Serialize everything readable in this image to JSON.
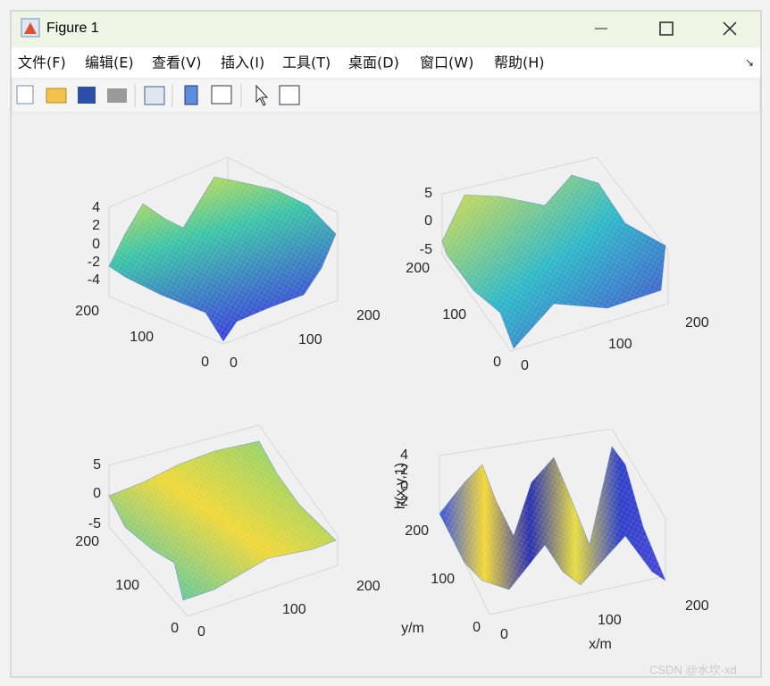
{
  "window": {
    "title": "Figure 1"
  },
  "menu": [
    "文件(F)",
    "编辑(E)",
    "查看(V)",
    "插入(I)",
    "工具(T)",
    "桌面(D)",
    "窗口(W)",
    "帮助(H)"
  ],
  "subplots": [
    {
      "zticks": [
        4,
        2,
        0,
        -2,
        -4
      ],
      "yticks": [
        200,
        100,
        0
      ],
      "xticks": [
        0,
        100,
        200
      ]
    },
    {
      "zticks": [
        5,
        0,
        -5
      ],
      "yticks": [
        200,
        100,
        0
      ],
      "xticks": [
        0,
        100,
        200
      ]
    },
    {
      "zticks": [
        5,
        0,
        -5
      ],
      "yticks": [
        200,
        100,
        0
      ],
      "xticks": [
        0,
        100,
        200
      ]
    },
    {
      "zlabel": "h(x,y,1)",
      "ylabel": "y/m",
      "xlabel": "x/m",
      "zticks": [
        4,
        2,
        0,
        -2
      ],
      "yticks": [
        200,
        100,
        0
      ],
      "xticks": [
        0,
        100,
        200
      ]
    }
  ],
  "watermark": "CSDN @水坎-xd"
}
